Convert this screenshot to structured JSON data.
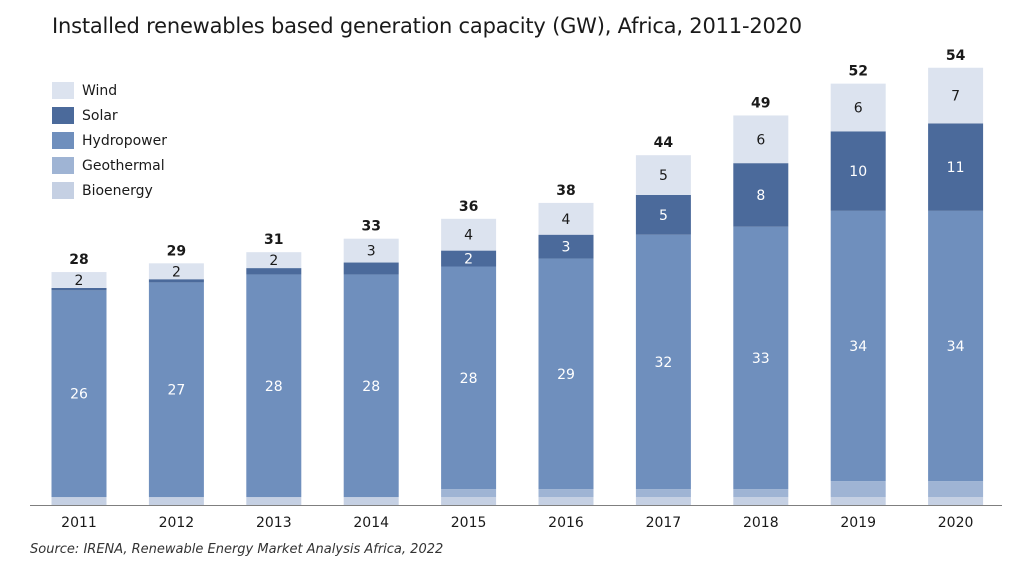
{
  "title": "Installed renewables based generation capacity (GW), Africa, 2011-2020",
  "source": "Source: IRENA, Renewable Energy Market Analysis Africa, 2022",
  "colors": {
    "Wind": "#dce3ef",
    "Solar": "#4b6a9b",
    "Hydropower": "#6f8fbd",
    "Geothermal": "#9fb4d4",
    "Bioenergy": "#c5d0e3"
  },
  "legend": [
    "Wind",
    "Solar",
    "Hydropower",
    "Geothermal",
    "Bioenergy"
  ],
  "chart_data": {
    "type": "bar",
    "stacked": true,
    "title": "Installed renewables based generation capacity (GW), Africa, 2011-2020",
    "xlabel": "",
    "ylabel": "",
    "categories": [
      "2011",
      "2012",
      "2013",
      "2014",
      "2015",
      "2016",
      "2017",
      "2018",
      "2019",
      "2020"
    ],
    "totals": [
      28,
      29,
      31,
      33,
      36,
      38,
      44,
      49,
      52,
      54
    ],
    "series": [
      {
        "name": "Bioenergy",
        "values": [
          1,
          1,
          1,
          1,
          1,
          1,
          1,
          1,
          1,
          1
        ]
      },
      {
        "name": "Geothermal",
        "values": [
          0,
          0,
          0,
          0,
          1,
          1,
          1,
          1,
          2,
          2
        ]
      },
      {
        "name": "Hydropower",
        "values": [
          26,
          27,
          28,
          28,
          28,
          29,
          32,
          33,
          34,
          34
        ]
      },
      {
        "name": "Solar",
        "values": [
          0.3,
          0.4,
          0.8,
          1.5,
          2,
          3,
          5,
          8,
          10,
          11
        ]
      },
      {
        "name": "Wind",
        "values": [
          2,
          2,
          2,
          3,
          4,
          4,
          5,
          6,
          6,
          7
        ]
      }
    ],
    "data_labels": {
      "Hydropower": [
        26,
        27,
        28,
        28,
        28,
        29,
        32,
        33,
        34,
        34
      ],
      "Solar": [
        null,
        null,
        null,
        null,
        2,
        3,
        5,
        8,
        10,
        11
      ],
      "Wind": [
        2,
        2,
        2,
        3,
        4,
        4,
        5,
        6,
        6,
        7
      ]
    },
    "grid": false,
    "legend_position": "top-left"
  }
}
